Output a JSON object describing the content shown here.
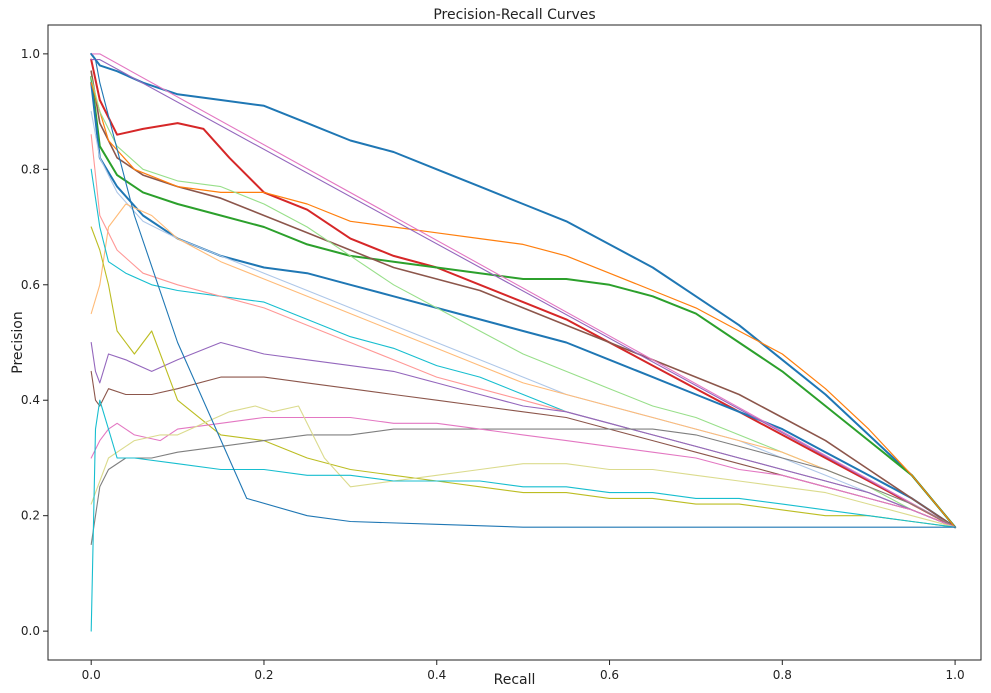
{
  "chart_data": {
    "type": "line",
    "title": "Precision-Recall Curves",
    "xlabel": "Recall",
    "ylabel": "Precision",
    "xlim": [
      -0.05,
      1.03
    ],
    "ylim": [
      -0.05,
      1.05
    ],
    "xticks": [
      0.0,
      0.2,
      0.4,
      0.6,
      0.8,
      1.0
    ],
    "xtick_labels": [
      "0.0",
      "0.2",
      "0.4",
      "0.6",
      "0.8",
      "1.0"
    ],
    "yticks": [
      0.0,
      0.2,
      0.4,
      0.6,
      0.8,
      1.0
    ],
    "ytick_labels": [
      "0.0",
      "0.2",
      "0.4",
      "0.6",
      "0.8",
      "1.0"
    ],
    "grid": false,
    "legend": "none",
    "series": [
      {
        "color": "#1f77b4",
        "width": 2.0,
        "x": [
          0.0,
          0.005,
          0.01,
          0.03,
          0.06,
          0.1,
          0.15,
          0.2,
          0.25,
          0.3,
          0.35,
          0.4,
          0.45,
          0.5,
          0.55,
          0.6,
          0.65,
          0.7,
          0.75,
          0.8,
          0.85,
          0.9,
          0.95,
          1.0
        ],
        "y": [
          1.0,
          0.99,
          0.98,
          0.97,
          0.95,
          0.93,
          0.92,
          0.91,
          0.88,
          0.85,
          0.83,
          0.8,
          0.77,
          0.74,
          0.71,
          0.67,
          0.63,
          0.58,
          0.53,
          0.47,
          0.41,
          0.34,
          0.27,
          0.18
        ]
      },
      {
        "color": "#d62728",
        "width": 2.0,
        "x": [
          0.0,
          0.01,
          0.03,
          0.06,
          0.1,
          0.13,
          0.16,
          0.2,
          0.25,
          0.3,
          0.35,
          0.4,
          0.45,
          0.5,
          0.55,
          0.6,
          0.65,
          0.7,
          0.75,
          0.8,
          0.85,
          0.9,
          0.95,
          1.0
        ],
        "y": [
          0.99,
          0.92,
          0.86,
          0.87,
          0.88,
          0.87,
          0.82,
          0.76,
          0.73,
          0.68,
          0.65,
          0.63,
          0.6,
          0.57,
          0.54,
          0.5,
          0.46,
          0.42,
          0.38,
          0.34,
          0.3,
          0.26,
          0.22,
          0.18
        ]
      },
      {
        "color": "#2ca02c",
        "width": 2.0,
        "x": [
          0.0,
          0.01,
          0.03,
          0.06,
          0.1,
          0.15,
          0.2,
          0.25,
          0.3,
          0.35,
          0.4,
          0.45,
          0.5,
          0.55,
          0.6,
          0.65,
          0.7,
          0.75,
          0.8,
          0.85,
          0.9,
          0.95,
          1.0
        ],
        "y": [
          0.96,
          0.84,
          0.79,
          0.76,
          0.74,
          0.72,
          0.7,
          0.67,
          0.65,
          0.64,
          0.63,
          0.62,
          0.61,
          0.61,
          0.6,
          0.58,
          0.55,
          0.5,
          0.45,
          0.39,
          0.33,
          0.27,
          0.18
        ]
      },
      {
        "color": "#1f77b4",
        "width": 2.0,
        "x": [
          0.0,
          0.01,
          0.03,
          0.06,
          0.1,
          0.15,
          0.2,
          0.25,
          0.3,
          0.35,
          0.4,
          0.45,
          0.5,
          0.55,
          0.6,
          0.65,
          0.7,
          0.75,
          0.8,
          0.85,
          0.9,
          0.95,
          1.0
        ],
        "y": [
          0.95,
          0.82,
          0.77,
          0.72,
          0.68,
          0.65,
          0.63,
          0.62,
          0.6,
          0.58,
          0.56,
          0.54,
          0.52,
          0.5,
          0.47,
          0.44,
          0.41,
          0.38,
          0.35,
          0.31,
          0.27,
          0.23,
          0.18
        ]
      },
      {
        "color": "#8c564b",
        "width": 1.6,
        "x": [
          0.0,
          0.01,
          0.03,
          0.06,
          0.1,
          0.15,
          0.2,
          0.25,
          0.3,
          0.35,
          0.4,
          0.45,
          0.5,
          0.55,
          0.6,
          0.65,
          0.7,
          0.75,
          0.8,
          0.85,
          0.9,
          0.95,
          1.0
        ],
        "y": [
          0.97,
          0.88,
          0.82,
          0.79,
          0.77,
          0.75,
          0.72,
          0.69,
          0.66,
          0.63,
          0.61,
          0.59,
          0.56,
          0.53,
          0.5,
          0.47,
          0.44,
          0.41,
          0.37,
          0.33,
          0.28,
          0.23,
          0.18
        ]
      },
      {
        "color": "#ff7f0e",
        "width": 1.2,
        "x": [
          0.0,
          0.02,
          0.05,
          0.1,
          0.15,
          0.2,
          0.25,
          0.3,
          0.35,
          0.4,
          0.45,
          0.5,
          0.55,
          0.6,
          0.65,
          0.7,
          0.75,
          0.8,
          0.85,
          0.9,
          0.95,
          1.0
        ],
        "y": [
          0.95,
          0.85,
          0.8,
          0.77,
          0.76,
          0.76,
          0.74,
          0.71,
          0.7,
          0.69,
          0.68,
          0.67,
          0.65,
          0.62,
          0.59,
          0.56,
          0.52,
          0.48,
          0.42,
          0.35,
          0.27,
          0.18
        ]
      },
      {
        "color": "#9467bd",
        "width": 1.1,
        "x": [
          0.0,
          0.01,
          1.0
        ],
        "y": [
          0.99,
          0.99,
          0.18
        ]
      },
      {
        "color": "#e377c2",
        "width": 1.1,
        "x": [
          0.0,
          0.01,
          1.0
        ],
        "y": [
          1.0,
          1.0,
          0.18
        ]
      },
      {
        "color": "#98df8a",
        "width": 1.1,
        "x": [
          0.0,
          0.01,
          0.03,
          0.06,
          0.1,
          0.15,
          0.2,
          0.25,
          0.3,
          0.35,
          0.4,
          0.45,
          0.5,
          0.55,
          0.6,
          0.65,
          0.7,
          0.75,
          0.8,
          0.85,
          0.9,
          0.95,
          1.0
        ],
        "y": [
          0.96,
          0.9,
          0.84,
          0.8,
          0.78,
          0.77,
          0.74,
          0.7,
          0.65,
          0.6,
          0.56,
          0.52,
          0.48,
          0.45,
          0.42,
          0.39,
          0.37,
          0.34,
          0.31,
          0.28,
          0.25,
          0.21,
          0.18
        ]
      },
      {
        "color": "#aec7e8",
        "width": 1.1,
        "x": [
          0.0,
          0.01,
          0.03,
          0.06,
          0.1,
          0.15,
          0.2,
          0.25,
          0.3,
          0.35,
          0.4,
          0.45,
          0.5,
          0.55,
          0.6,
          0.65,
          0.7,
          0.75,
          0.8,
          0.85,
          0.9,
          0.95,
          1.0
        ],
        "y": [
          0.9,
          0.82,
          0.76,
          0.71,
          0.68,
          0.65,
          0.62,
          0.59,
          0.56,
          0.53,
          0.5,
          0.47,
          0.44,
          0.41,
          0.39,
          0.37,
          0.35,
          0.33,
          0.3,
          0.27,
          0.24,
          0.21,
          0.18
        ]
      },
      {
        "color": "#ffbb78",
        "width": 1.1,
        "x": [
          0.0,
          0.01,
          0.02,
          0.04,
          0.07,
          0.1,
          0.15,
          0.2,
          0.25,
          0.3,
          0.35,
          0.4,
          0.45,
          0.5,
          0.55,
          0.6,
          0.65,
          0.7,
          0.75,
          0.8,
          0.85,
          0.9,
          0.95,
          1.0
        ],
        "y": [
          0.55,
          0.6,
          0.7,
          0.74,
          0.72,
          0.68,
          0.64,
          0.61,
          0.58,
          0.55,
          0.52,
          0.49,
          0.46,
          0.43,
          0.41,
          0.39,
          0.37,
          0.35,
          0.33,
          0.31,
          0.28,
          0.25,
          0.22,
          0.18
        ]
      },
      {
        "color": "#17becf",
        "width": 1.1,
        "x": [
          0.0,
          0.01,
          0.02,
          0.04,
          0.07,
          0.1,
          0.15,
          0.2,
          0.25,
          0.3,
          0.35,
          0.4,
          0.45,
          0.5,
          0.55,
          0.6,
          0.65,
          0.7,
          0.75,
          0.8,
          0.85,
          0.9,
          0.95,
          1.0
        ],
        "y": [
          0.8,
          0.7,
          0.64,
          0.62,
          0.6,
          0.59,
          0.58,
          0.57,
          0.54,
          0.51,
          0.49,
          0.46,
          0.44,
          0.41,
          0.38,
          0.36,
          0.34,
          0.32,
          0.3,
          0.28,
          0.26,
          0.24,
          0.21,
          0.18
        ]
      },
      {
        "color": "#ff9896",
        "width": 1.1,
        "x": [
          0.0,
          0.01,
          0.03,
          0.06,
          0.1,
          0.15,
          0.2,
          0.25,
          0.3,
          0.35,
          0.4,
          0.45,
          0.5,
          0.55,
          0.6,
          0.65,
          0.7,
          0.75,
          0.8,
          0.85,
          0.9,
          0.95,
          1.0
        ],
        "y": [
          0.86,
          0.72,
          0.66,
          0.62,
          0.6,
          0.58,
          0.56,
          0.53,
          0.5,
          0.47,
          0.44,
          0.42,
          0.4,
          0.38,
          0.36,
          0.34,
          0.32,
          0.3,
          0.28,
          0.26,
          0.24,
          0.21,
          0.18
        ]
      },
      {
        "color": "#9467bd",
        "width": 1.1,
        "x": [
          0.0,
          0.005,
          0.01,
          0.02,
          0.04,
          0.07,
          0.1,
          0.15,
          0.2,
          0.25,
          0.3,
          0.35,
          0.4,
          0.45,
          0.5,
          0.55,
          0.6,
          0.65,
          0.7,
          0.75,
          0.8,
          0.85,
          0.9,
          0.95,
          1.0
        ],
        "y": [
          0.5,
          0.45,
          0.43,
          0.48,
          0.47,
          0.45,
          0.47,
          0.5,
          0.48,
          0.47,
          0.46,
          0.45,
          0.43,
          0.41,
          0.39,
          0.38,
          0.36,
          0.34,
          0.32,
          0.3,
          0.28,
          0.26,
          0.24,
          0.21,
          0.18
        ]
      },
      {
        "color": "#8c564b",
        "width": 1.1,
        "x": [
          0.0,
          0.005,
          0.01,
          0.02,
          0.04,
          0.07,
          0.1,
          0.15,
          0.2,
          0.25,
          0.3,
          0.35,
          0.4,
          0.45,
          0.5,
          0.55,
          0.6,
          0.65,
          0.7,
          0.75,
          0.8,
          0.85,
          0.9,
          0.95,
          1.0
        ],
        "y": [
          0.45,
          0.4,
          0.39,
          0.42,
          0.41,
          0.41,
          0.42,
          0.44,
          0.44,
          0.43,
          0.42,
          0.41,
          0.4,
          0.39,
          0.38,
          0.37,
          0.35,
          0.33,
          0.31,
          0.29,
          0.27,
          0.25,
          0.23,
          0.21,
          0.18
        ]
      },
      {
        "color": "#bcbd22",
        "width": 1.1,
        "x": [
          0.0,
          0.01,
          0.02,
          0.03,
          0.05,
          0.07,
          0.1,
          0.15,
          0.2,
          0.25,
          0.3,
          0.35,
          0.4,
          0.45,
          0.5,
          0.55,
          0.6,
          0.65,
          0.7,
          0.75,
          0.8,
          0.85,
          0.9,
          0.95,
          1.0
        ],
        "y": [
          0.7,
          0.66,
          0.6,
          0.52,
          0.48,
          0.52,
          0.4,
          0.34,
          0.33,
          0.3,
          0.28,
          0.27,
          0.26,
          0.25,
          0.24,
          0.24,
          0.23,
          0.23,
          0.22,
          0.22,
          0.21,
          0.2,
          0.2,
          0.19,
          0.18
        ]
      },
      {
        "color": "#7f7f7f",
        "width": 1.1,
        "x": [
          0.0,
          0.01,
          0.02,
          0.04,
          0.07,
          0.1,
          0.15,
          0.2,
          0.25,
          0.3,
          0.35,
          0.4,
          0.45,
          0.5,
          0.55,
          0.6,
          0.65,
          0.7,
          0.75,
          0.8,
          0.85,
          0.9,
          0.95,
          1.0
        ],
        "y": [
          0.15,
          0.25,
          0.28,
          0.3,
          0.3,
          0.31,
          0.32,
          0.33,
          0.34,
          0.34,
          0.35,
          0.35,
          0.35,
          0.35,
          0.35,
          0.35,
          0.35,
          0.34,
          0.32,
          0.3,
          0.28,
          0.25,
          0.22,
          0.18
        ]
      },
      {
        "color": "#e377c2",
        "width": 1.1,
        "x": [
          0.0,
          0.01,
          0.02,
          0.03,
          0.05,
          0.08,
          0.1,
          0.15,
          0.2,
          0.25,
          0.3,
          0.35,
          0.4,
          0.45,
          0.5,
          0.55,
          0.6,
          0.65,
          0.7,
          0.75,
          0.8,
          0.85,
          0.9,
          0.95,
          1.0
        ],
        "y": [
          0.3,
          0.33,
          0.35,
          0.36,
          0.34,
          0.33,
          0.35,
          0.36,
          0.37,
          0.37,
          0.37,
          0.36,
          0.36,
          0.35,
          0.34,
          0.33,
          0.32,
          0.31,
          0.3,
          0.28,
          0.27,
          0.25,
          0.23,
          0.21,
          0.18
        ]
      },
      {
        "color": "#dbdb8d",
        "width": 1.1,
        "x": [
          0.0,
          0.02,
          0.05,
          0.08,
          0.1,
          0.13,
          0.16,
          0.19,
          0.21,
          0.24,
          0.27,
          0.3,
          0.35,
          0.4,
          0.45,
          0.5,
          0.55,
          0.6,
          0.65,
          0.7,
          0.75,
          0.8,
          0.85,
          0.9,
          0.95,
          1.0
        ],
        "y": [
          0.22,
          0.3,
          0.33,
          0.34,
          0.34,
          0.36,
          0.38,
          0.39,
          0.38,
          0.39,
          0.3,
          0.25,
          0.26,
          0.27,
          0.28,
          0.29,
          0.29,
          0.28,
          0.28,
          0.27,
          0.26,
          0.25,
          0.24,
          0.22,
          0.2,
          0.18
        ]
      },
      {
        "color": "#17becf",
        "width": 1.1,
        "x": [
          0.0,
          0.005,
          0.01,
          0.02,
          0.03,
          0.05,
          0.1,
          0.15,
          0.2,
          0.25,
          0.3,
          0.35,
          0.4,
          0.45,
          0.5,
          0.55,
          0.6,
          0.65,
          0.7,
          0.75,
          0.8,
          0.85,
          0.9,
          0.95,
          1.0
        ],
        "y": [
          0.0,
          0.35,
          0.4,
          0.35,
          0.3,
          0.3,
          0.29,
          0.28,
          0.28,
          0.27,
          0.27,
          0.26,
          0.26,
          0.26,
          0.25,
          0.25,
          0.24,
          0.24,
          0.23,
          0.23,
          0.22,
          0.21,
          0.2,
          0.19,
          0.18
        ]
      },
      {
        "color": "#1f77b4",
        "width": 1.1,
        "x": [
          0.0,
          0.005,
          0.01,
          0.05,
          0.1,
          0.18,
          0.25,
          0.3,
          0.4,
          0.5,
          0.6,
          0.7,
          0.8,
          0.9,
          1.0
        ],
        "y": [
          1.0,
          0.99,
          0.95,
          0.72,
          0.5,
          0.23,
          0.2,
          0.19,
          0.185,
          0.18,
          0.18,
          0.18,
          0.18,
          0.18,
          0.18
        ]
      }
    ]
  }
}
